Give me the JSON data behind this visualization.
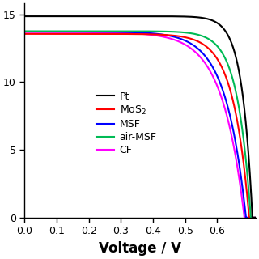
{
  "xlabel": "Voltage / V",
  "xlim": [
    0.0,
    0.72
  ],
  "ylim": [
    0,
    15.8
  ],
  "yticks": [
    0,
    5,
    10,
    15
  ],
  "xticks": [
    0.0,
    0.1,
    0.2,
    0.3,
    0.4,
    0.5,
    0.6
  ],
  "curves": {
    "Pt": {
      "color": "black",
      "Isc": 14.85,
      "Voc": 0.71,
      "a": 22
    },
    "MoS2": {
      "color": "red",
      "Isc": 13.55,
      "Voc": 0.7,
      "a": 14
    },
    "MSF": {
      "color": "blue",
      "Isc": 13.72,
      "Voc": 0.69,
      "a": 11
    },
    "air-MSF": {
      "color": "#00bb55",
      "Isc": 13.75,
      "Voc": 0.705,
      "a": 17
    },
    "CF": {
      "color": "magenta",
      "Isc": 13.68,
      "Voc": 0.685,
      "a": 10
    }
  },
  "plot_order": [
    "CF",
    "MSF",
    "MoS2",
    "air-MSF",
    "Pt"
  ],
  "legend_labels": {
    "Pt": "Pt",
    "MoS2": "MoS$_2$",
    "MSF": "MSF",
    "air-MSF": "air-MSF",
    "CF": "CF"
  },
  "legend_order": [
    "Pt",
    "MoS2",
    "MSF",
    "air-MSF",
    "CF"
  ],
  "linewidth": 1.5,
  "fontsize_axis": 12,
  "fontsize_tick": 9,
  "fontsize_legend": 9
}
